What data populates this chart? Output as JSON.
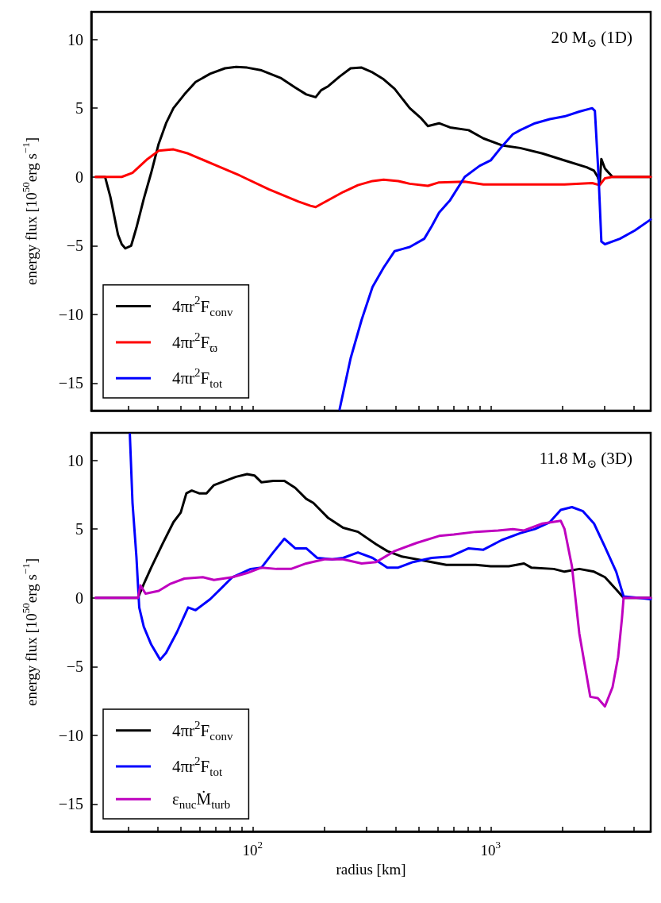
{
  "chart_data": [
    {
      "type": "line",
      "title": "20 M$_{⊙}$ (1D)",
      "ylabel": "energy flux [10$^{50}$erg s$^{−1}$]",
      "log": "x",
      "legend": "bottom left",
      "tick_labels": "y",
      "xlim": [
        21,
        4700
      ],
      "xticks": [
        30,
        40,
        50,
        60,
        70,
        80,
        90,
        100,
        200,
        300,
        400,
        500,
        600,
        700,
        800,
        900,
        1000,
        2000,
        3000,
        4000
      ],
      "ylim": [
        -17,
        12
      ],
      "yticks": [
        -15,
        -10,
        -5,
        0,
        5,
        10
      ],
      "series": [
        {
          "name": "4πr$^{2}$F$_{conv}$",
          "color": "#000000",
          "x": [
            21.9,
            24.0,
            25.3,
            27.2,
            28.2,
            29.2,
            30.9,
            32.5,
            34.9,
            37.5,
            40.3,
            43.3,
            46.5,
            51.7,
            57.6,
            66.3,
            76.5,
            85.2,
            94.8,
            109,
            131,
            151,
            168,
            184,
            194,
            208,
            232,
            258,
            287,
            319,
            355,
            395,
            457,
            508,
            545,
            607,
            675,
            808,
            932,
            1113,
            1330,
            1650,
            2043,
            2531,
            2717,
            2816,
            2870,
            2917,
            3020,
            3250,
            4700
          ],
          "values": [
            0,
            0,
            -1.5,
            -4.2,
            -4.9,
            -5.2,
            -5.0,
            -3.7,
            -1.6,
            0.3,
            2.4,
            3.9,
            5.0,
            6.0,
            6.9,
            7.5,
            7.9,
            8.0,
            7.95,
            7.75,
            7.2,
            6.5,
            6.0,
            5.8,
            6.3,
            6.6,
            7.3,
            7.9,
            7.95,
            7.6,
            7.1,
            6.4,
            5.0,
            4.3,
            3.7,
            3.9,
            3.6,
            3.4,
            2.8,
            2.3,
            2.1,
            1.7,
            1.2,
            0.7,
            0.45,
            0,
            -0.5,
            1.3,
            0.6,
            0,
            0
          ]
        },
        {
          "name": "4πr$^{2}$F$_{ϖ}$",
          "color": "#ff0000",
          "x": [
            21.9,
            28.2,
            31.3,
            36.2,
            40.3,
            46.5,
            53.6,
            68.8,
            88.3,
            117,
            156,
            175,
            184,
            200,
            240,
            277,
            319,
            355,
            409,
            457,
            545,
            607,
            778,
            932,
            1430,
            2043,
            2670,
            2870,
            3020,
            3250,
            4700
          ],
          "values": [
            0,
            0,
            0.3,
            1.3,
            1.9,
            2.0,
            1.7,
            0.9,
            0.1,
            -0.9,
            -1.8,
            -2.1,
            -2.2,
            -1.85,
            -1.1,
            -0.6,
            -0.3,
            -0.2,
            -0.3,
            -0.5,
            -0.65,
            -0.4,
            -0.35,
            -0.55,
            -0.55,
            -0.55,
            -0.45,
            -0.6,
            -0.1,
            0,
            0
          ]
        },
        {
          "name": "4πr$^{2}$F$_{tot}$",
          "color": "#0000ff",
          "x": [
            232,
            258,
            287,
            319,
            355,
            395,
            457,
            526,
            565,
            607,
            675,
            778,
            898,
            1000,
            1113,
            1239,
            1330,
            1535,
            1771,
            2043,
            2357,
            2670,
            2740,
            2840,
            2917,
            3020,
            3490,
            4030,
            4700
          ],
          "values": [
            -16.9,
            -13.2,
            -10.4,
            -8.0,
            -6.6,
            -5.4,
            -5.1,
            -4.5,
            -3.6,
            -2.6,
            -1.7,
            0.0,
            0.8,
            1.2,
            2.2,
            3.1,
            3.4,
            3.9,
            4.2,
            4.4,
            4.75,
            5.0,
            4.8,
            0,
            -4.7,
            -4.9,
            -4.5,
            -3.9,
            -3.1
          ]
        }
      ]
    },
    {
      "type": "line",
      "title": "11.8 M$_{⊙}$ (3D)",
      "xlabel": "radius [km]",
      "ylabel": "energy flux [10$^{50}$erg s$^{−1}$]",
      "log": "x",
      "legend": "bottom left",
      "xlim": [
        21,
        4700
      ],
      "xticks": [
        {
          "value": 30,
          "label": null
        },
        {
          "value": 40,
          "label": null
        },
        {
          "value": 50,
          "label": null
        },
        {
          "value": 60,
          "label": null
        },
        {
          "value": 70,
          "label": null
        },
        {
          "value": 80,
          "label": null
        },
        {
          "value": 90,
          "label": null
        },
        {
          "value": 100,
          "label": "10$^{2}$"
        },
        {
          "value": 200,
          "label": null
        },
        {
          "value": 300,
          "label": null
        },
        {
          "value": 400,
          "label": null
        },
        {
          "value": 500,
          "label": null
        },
        {
          "value": 600,
          "label": null
        },
        {
          "value": 700,
          "label": null
        },
        {
          "value": 800,
          "label": null
        },
        {
          "value": 900,
          "label": null
        },
        {
          "value": 1000,
          "label": "10$^{3}$"
        },
        {
          "value": 2000,
          "label": null
        },
        {
          "value": 3000,
          "label": null
        },
        {
          "value": 4000,
          "label": null
        }
      ],
      "ylim": [
        -17,
        12
      ],
      "yticks": [
        -15,
        -10,
        -5,
        0,
        5,
        10
      ],
      "series": [
        {
          "name": "4πr$^{2}$F$_{conv}$",
          "color": "#000000",
          "x": [
            21.9,
            33.0,
            34.9,
            37.5,
            41.8,
            46.5,
            49.9,
            52.7,
            55.5,
            59.6,
            64.0,
            68.8,
            76.5,
            85.2,
            94.8,
            101.8,
            109,
            122,
            136,
            151,
            168,
            180,
            208,
            240,
            277,
            330,
            368,
            424,
            526,
            651,
            866,
            1000,
            1192,
            1380,
            1480,
            1840,
            2043,
            2357,
            2717,
            3020,
            3367,
            3617,
            4700
          ],
          "values": [
            0,
            0,
            1.0,
            2.2,
            3.9,
            5.5,
            6.2,
            7.6,
            7.8,
            7.6,
            7.6,
            8.2,
            8.5,
            8.8,
            9.0,
            8.9,
            8.4,
            8.5,
            8.5,
            8.0,
            7.2,
            6.9,
            5.8,
            5.1,
            4.8,
            3.9,
            3.4,
            3.0,
            2.7,
            2.4,
            2.4,
            2.3,
            2.3,
            2.5,
            2.2,
            2.1,
            1.9,
            2.1,
            1.9,
            1.5,
            0.6,
            0,
            0
          ]
        },
        {
          "name": "4πr$^{2}$F$_{tot}$",
          "color": "#0000ff",
          "x": [
            30.5,
            31.3,
            32.5,
            33.4,
            34.9,
            37.5,
            40.9,
            43.3,
            48.1,
            53.6,
            57.6,
            66.3,
            73.9,
            82.2,
            98.2,
            109,
            122,
            136,
            151,
            168,
            187,
            216,
            240,
            277,
            319,
            368,
            409,
            472,
            565,
            675,
            808,
            932,
            1113,
            1330,
            1535,
            1771,
            1970,
            2194,
            2442,
            2717,
            3020,
            3367,
            3617,
            4173,
            4700
          ],
          "values": [
            11.9,
            6.9,
            3.0,
            -0.7,
            -2.1,
            -3.4,
            -4.5,
            -4.0,
            -2.5,
            -0.7,
            -0.9,
            -0.1,
            0.7,
            1.5,
            2.1,
            2.2,
            3.3,
            4.3,
            3.6,
            3.6,
            2.9,
            2.8,
            2.9,
            3.3,
            2.9,
            2.2,
            2.2,
            2.6,
            2.9,
            3.0,
            3.6,
            3.5,
            4.2,
            4.7,
            5.0,
            5.5,
            6.4,
            6.6,
            6.3,
            5.4,
            3.7,
            1.9,
            0.1,
            0,
            -0.1
          ]
        },
        {
          "name": "ε$_{nuc}$Ṁ$_{turb}$",
          "color": "#bf00bf",
          "x": [
            21.9,
            33.0,
            33.8,
            35.5,
            40.3,
            44.9,
            51.7,
            61.8,
            68.8,
            82.2,
            94.8,
            109,
            126,
            145,
            168,
            200,
            240,
            287,
            330,
            395,
            490,
            607,
            700,
            866,
            1074,
            1239,
            1380,
            1650,
            1970,
            2043,
            2194,
            2357,
            2620,
            2816,
            3020,
            3250,
            3430,
            3560,
            3617,
            4700
          ],
          "values": [
            0,
            0,
            0.9,
            0.3,
            0.5,
            1.0,
            1.4,
            1.5,
            1.3,
            1.5,
            1.8,
            2.2,
            2.1,
            2.1,
            2.5,
            2.8,
            2.8,
            2.5,
            2.6,
            3.4,
            4.0,
            4.5,
            4.6,
            4.8,
            4.9,
            5.0,
            4.9,
            5.4,
            5.6,
            5.0,
            2.3,
            -2.6,
            -7.2,
            -7.3,
            -7.9,
            -6.5,
            -4.3,
            -1.5,
            0,
            0
          ]
        }
      ]
    }
  ]
}
